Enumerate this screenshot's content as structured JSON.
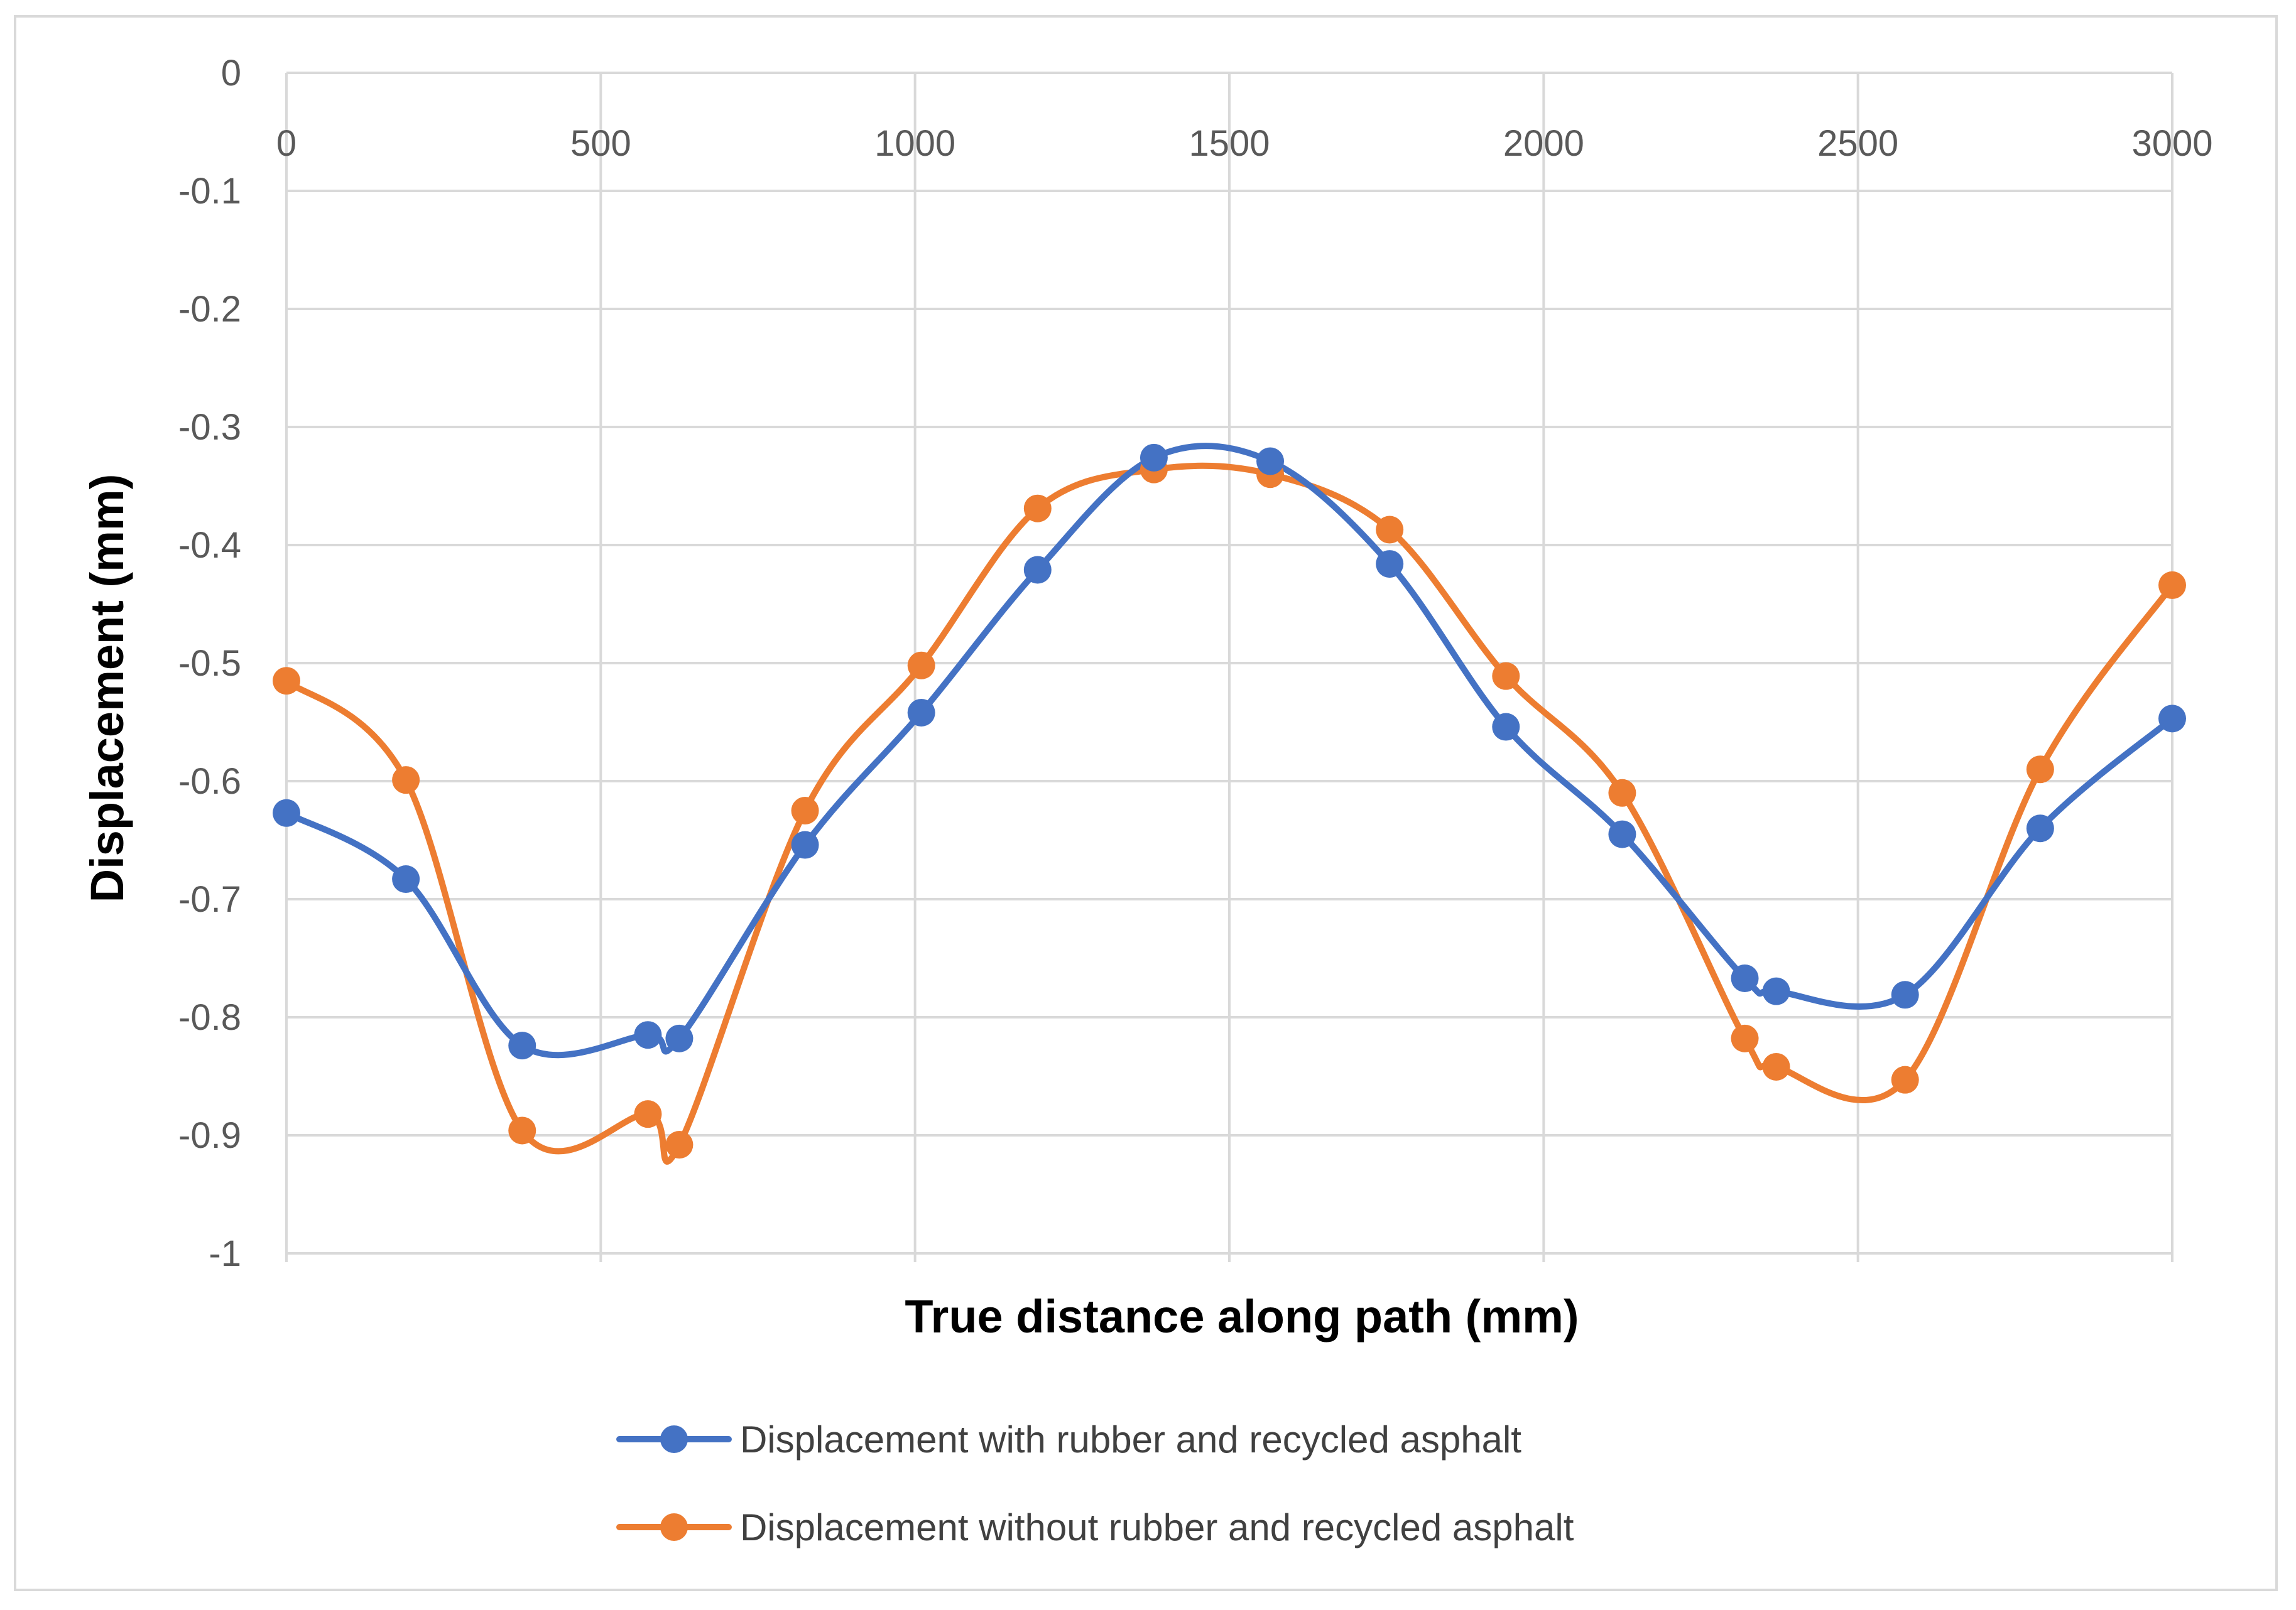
{
  "chart_data": {
    "type": "line",
    "title": "",
    "xlabel": "True distance along path (mm)",
    "ylabel": "Displacement (mm)",
    "xlim": [
      0,
      3000
    ],
    "ylim": [
      -1,
      0
    ],
    "x_ticks": [
      0,
      500,
      1000,
      1500,
      2000,
      2500,
      3000
    ],
    "y_ticks": [
      0,
      -0.1,
      -0.2,
      -0.3,
      -0.4,
      -0.5,
      -0.6,
      -0.7,
      -0.8,
      -0.9,
      -1
    ],
    "x_tick_labels": [
      "0",
      "500",
      "1000",
      "1500",
      "2000",
      "2500",
      "3000"
    ],
    "y_tick_labels": [
      "0",
      "-0.1",
      "-0.2",
      "-0.3",
      "-0.4",
      "-0.5",
      "-0.6",
      "-0.7",
      "-0.8",
      "-0.9",
      "-1"
    ],
    "x_axis_position": "top",
    "grid": true,
    "smooth": true,
    "legend_position": "bottom",
    "series": [
      {
        "name": "Displacement with rubber and recycled asphalt",
        "color": "#4472C4",
        "x": [
          0,
          190,
          375,
          575,
          625,
          825,
          1010,
          1195,
          1380,
          1565,
          1755,
          1940,
          2125,
          2320,
          2370,
          2575,
          2790,
          3000
        ],
        "y": [
          -0.627,
          -0.683,
          -0.824,
          -0.815,
          -0.818,
          -0.654,
          -0.542,
          -0.421,
          -0.326,
          -0.329,
          -0.416,
          -0.554,
          -0.645,
          -0.767,
          -0.778,
          -0.781,
          -0.64,
          -0.547
        ]
      },
      {
        "name": "Displacement without rubber and recycled asphalt",
        "color": "#ED7D31",
        "x": [
          0,
          190,
          375,
          575,
          625,
          825,
          1010,
          1195,
          1380,
          1565,
          1755,
          1940,
          2125,
          2320,
          2370,
          2575,
          2790,
          3000
        ],
        "y": [
          -0.515,
          -0.599,
          -0.896,
          -0.882,
          -0.908,
          -0.625,
          -0.502,
          -0.369,
          -0.336,
          -0.34,
          -0.387,
          -0.511,
          -0.61,
          -0.818,
          -0.842,
          -0.853,
          -0.59,
          -0.434
        ]
      }
    ]
  }
}
